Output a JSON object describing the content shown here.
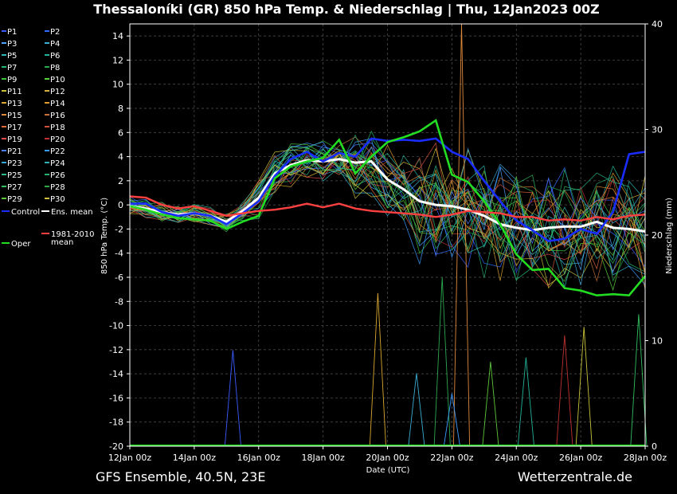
{
  "chart_data": {
    "type": "line",
    "title": "Thessaloníki  (GR)  850 hPa Temp. & Niederschlag | Thu, 12Jan2023 00Z",
    "xlabel": "Date (UTC)",
    "ylabel": "850 hPa Temp. (°C)",
    "y2label": "Niederschlag (mm)",
    "ylim": [
      -20,
      15
    ],
    "y2lim": [
      0,
      40
    ],
    "xlim": [
      0,
      16
    ],
    "x_unit": "days since 12Jan 00z",
    "x_tick_labels": [
      "12Jan 00z",
      "14Jan 00z",
      "16Jan 00z",
      "18Jan 00z",
      "20Jan 00z",
      "22Jan 00z",
      "24Jan 00z",
      "26Jan 00z",
      "28Jan 00z"
    ],
    "y_ticks": [
      14,
      12,
      10,
      8,
      6,
      4,
      2,
      0,
      -2,
      -4,
      -6,
      -8,
      -10,
      -12,
      -14,
      -16,
      -18,
      -20
    ],
    "y2_ticks": [
      40,
      30,
      20,
      10,
      0
    ],
    "grid": true,
    "legend": {
      "placement": "left",
      "entries": [
        {
          "label": "P1",
          "color": "#3b5bff"
        },
        {
          "label": "P2",
          "color": "#2f6bff"
        },
        {
          "label": "P3",
          "color": "#4da3ff"
        },
        {
          "label": "P4",
          "color": "#39b0d6"
        },
        {
          "label": "P5",
          "color": "#2fb7b7"
        },
        {
          "label": "P6",
          "color": "#22b39a"
        },
        {
          "label": "P7",
          "color": "#25b872"
        },
        {
          "label": "P8",
          "color": "#2aa84f"
        },
        {
          "label": "P9",
          "color": "#3cc33c"
        },
        {
          "label": "P10",
          "color": "#58d23a"
        },
        {
          "label": "P11",
          "color": "#c8c23a"
        },
        {
          "label": "P12",
          "color": "#d8b13a"
        },
        {
          "label": "P13",
          "color": "#d9a730"
        },
        {
          "label": "P14",
          "color": "#e09a2d"
        },
        {
          "label": "P15",
          "color": "#e08a3a"
        },
        {
          "label": "P16",
          "color": "#c8703a"
        },
        {
          "label": "P17",
          "color": "#e06a3a"
        },
        {
          "label": "P18",
          "color": "#d0503a"
        },
        {
          "label": "P19",
          "color": "#e04a4a"
        },
        {
          "label": "P20",
          "color": "#c03030"
        },
        {
          "label": "P21",
          "color": "#4a7dff"
        },
        {
          "label": "P22",
          "color": "#3a9bff"
        },
        {
          "label": "P23",
          "color": "#39a7d6"
        },
        {
          "label": "P24",
          "color": "#2fb0b0"
        },
        {
          "label": "P25",
          "color": "#2ab88c"
        },
        {
          "label": "P26",
          "color": "#28b070"
        },
        {
          "label": "P27",
          "color": "#30c060"
        },
        {
          "label": "P28",
          "color": "#2fa84a"
        },
        {
          "label": "P29",
          "color": "#5cc83a"
        },
        {
          "label": "P30",
          "color": "#cfc23a"
        },
        {
          "label": "Control",
          "color": "#1a2dff"
        },
        {
          "label": "Ens. mean",
          "color": "#ffffff"
        },
        {
          "label": "1981-2010 mean",
          "color": "#ff4040"
        },
        {
          "label": "Oper",
          "color": "#22dd22"
        }
      ]
    },
    "series": [
      {
        "name": "Ens. mean",
        "color": "#ffffff",
        "x": [
          0,
          0.5,
          1,
          1.5,
          2,
          2.5,
          3,
          3.5,
          4,
          4.5,
          5,
          5.5,
          6,
          6.5,
          7,
          7.5,
          8,
          8.5,
          9,
          9.5,
          10,
          10.5,
          11,
          11.5,
          12,
          12.5,
          13,
          13.5,
          14,
          14.5,
          15,
          15.5,
          16
        ],
        "y": [
          -0.1,
          -0.3,
          -0.6,
          -0.8,
          -0.7,
          -0.9,
          -1.4,
          -0.5,
          0.6,
          2.6,
          3.3,
          3.7,
          3.6,
          3.8,
          3.5,
          3.6,
          2.1,
          1.3,
          0.3,
          0.0,
          -0.1,
          -0.4,
          -0.9,
          -1.6,
          -1.9,
          -2.1,
          -1.9,
          -1.8,
          -1.8,
          -1.4,
          -1.9,
          -2.0,
          -2.2
        ]
      },
      {
        "name": "Control",
        "color": "#1a2dff",
        "x": [
          0,
          0.5,
          1,
          1.5,
          2,
          2.5,
          3,
          3.5,
          4,
          4.5,
          5,
          5.5,
          6,
          6.5,
          7,
          7.5,
          8,
          8.5,
          9,
          9.5,
          10,
          10.5,
          11,
          11.5,
          12,
          12.5,
          13,
          13.5,
          14,
          14.5,
          15,
          15.5,
          16
        ],
        "y": [
          0.1,
          0.1,
          -0.6,
          -0.9,
          -0.7,
          -0.9,
          -1.6,
          -0.7,
          0.3,
          2.4,
          3.8,
          4.4,
          3.6,
          4.3,
          4.0,
          5.5,
          5.3,
          5.4,
          5.3,
          5.5,
          4.4,
          3.8,
          2.0,
          0.3,
          -1.3,
          -2.1,
          -3.0,
          -2.8,
          -2.0,
          -2.4,
          -0.6,
          4.2,
          4.4
        ]
      },
      {
        "name": "Oper",
        "color": "#22dd22",
        "x": [
          0,
          0.5,
          1,
          1.5,
          2,
          2.5,
          3,
          3.5,
          4,
          4.5,
          5,
          5.5,
          6,
          6.5,
          7,
          7.5,
          8,
          8.5,
          9,
          9.5,
          10,
          10.5,
          11,
          11.5,
          12,
          12.5,
          13,
          13.5,
          14,
          14.5,
          15,
          15.5,
          16
        ],
        "y": [
          -0.1,
          -0.4,
          -0.8,
          -1.1,
          -1.2,
          -1.3,
          -2.0,
          -1.4,
          -0.9,
          2.2,
          3.2,
          3.6,
          3.9,
          5.4,
          2.6,
          4.0,
          5.2,
          5.6,
          6.1,
          7.0,
          2.5,
          1.9,
          0.3,
          -1.6,
          -4.1,
          -5.4,
          -5.3,
          -6.9,
          -7.1,
          -7.5,
          -7.4,
          -7.5,
          -5.9
        ]
      },
      {
        "name": "1981-2010 mean",
        "color": "#ff4040",
        "x": [
          0,
          0.5,
          1,
          1.5,
          2,
          2.5,
          3,
          3.5,
          4,
          4.5,
          5,
          5.5,
          6,
          6.5,
          7,
          7.5,
          8,
          8.5,
          9,
          9.5,
          10,
          10.5,
          11,
          11.5,
          12,
          12.5,
          13,
          13.5,
          14,
          14.5,
          15,
          15.5,
          16
        ],
        "y": [
          0.7,
          0.6,
          0.0,
          -0.3,
          -0.1,
          -0.5,
          -0.9,
          -0.7,
          -0.5,
          -0.4,
          -0.2,
          0.1,
          -0.2,
          0.1,
          -0.3,
          -0.5,
          -0.6,
          -0.7,
          -0.8,
          -1.0,
          -0.8,
          -0.5,
          -0.6,
          -0.7,
          -1.0,
          -1.0,
          -1.3,
          -1.2,
          -1.3,
          -1.0,
          -1.2,
          -0.9,
          -0.8
        ]
      }
    ],
    "precip_peaks": [
      {
        "x": 3.2,
        "y2": 9.1
      },
      {
        "x": 9.7,
        "y2": 16.0
      },
      {
        "x": 10.3,
        "y2": 40.0
      },
      {
        "x": 10.0,
        "y2": 5.0
      },
      {
        "x": 11.2,
        "y2": 8.0
      },
      {
        "x": 12.3,
        "y2": 8.4
      },
      {
        "x": 7.7,
        "y2": 14.5
      },
      {
        "x": 13.5,
        "y2": 10.5
      },
      {
        "x": 15.8,
        "y2": 12.5
      },
      {
        "x": 8.9,
        "y2": 6.9
      },
      {
        "x": 14.1,
        "y2": 11.3
      }
    ]
  },
  "footer": {
    "left": "GFS Ensemble, 40.5N, 23E",
    "right": "Wetterzentrale.de"
  }
}
